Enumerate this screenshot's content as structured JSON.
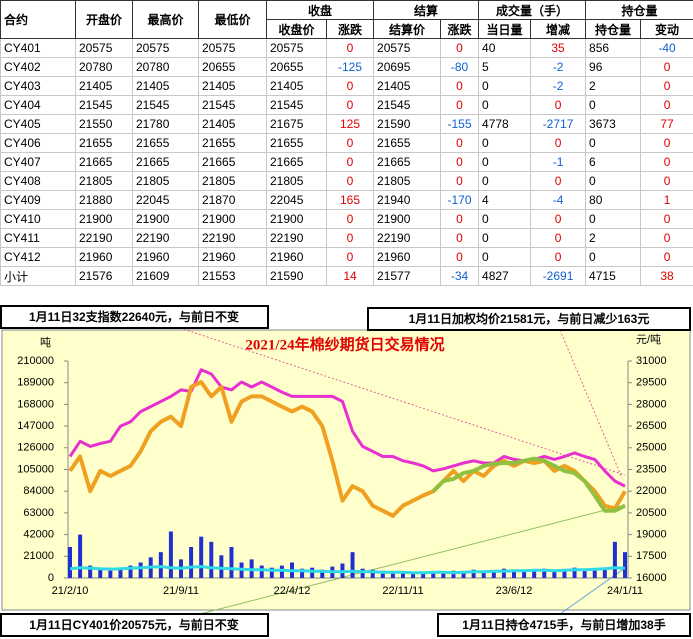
{
  "table": {
    "header_top": [
      "收盘",
      "结算",
      "成交量（手）",
      "持仓量"
    ],
    "header": [
      "合约",
      "开盘价",
      "最高价",
      "最低价",
      "收盘价",
      "涨跌",
      "结算价",
      "涨跌",
      "当日量",
      "增减",
      "持仓量",
      "变动"
    ],
    "rows": [
      [
        "CY401",
        20575,
        20575,
        20575,
        20575,
        0,
        20575,
        0,
        40,
        35,
        856,
        -40
      ],
      [
        "CY402",
        20780,
        20780,
        20655,
        20655,
        -125,
        20695,
        -80,
        5,
        -2,
        96,
        0
      ],
      [
        "CY403",
        21405,
        21405,
        21405,
        21405,
        0,
        21405,
        0,
        0,
        -2,
        2,
        0
      ],
      [
        "CY404",
        21545,
        21545,
        21545,
        21545,
        0,
        21545,
        0,
        0,
        0,
        0,
        0
      ],
      [
        "CY405",
        21550,
        21780,
        21405,
        21675,
        125,
        21590,
        -155,
        4778,
        -2717,
        3673,
        77
      ],
      [
        "CY406",
        21655,
        21655,
        21655,
        21655,
        0,
        21655,
        0,
        0,
        0,
        0,
        0
      ],
      [
        "CY407",
        21665,
        21665,
        21665,
        21665,
        0,
        21665,
        0,
        0,
        -1,
        6,
        0
      ],
      [
        "CY408",
        21805,
        21805,
        21805,
        21805,
        0,
        21805,
        0,
        0,
        0,
        0,
        0
      ],
      [
        "CY409",
        21880,
        22045,
        21870,
        22045,
        165,
        21940,
        -170,
        4,
        -4,
        80,
        1
      ],
      [
        "CY410",
        21900,
        21900,
        21900,
        21900,
        0,
        21900,
        0,
        0,
        0,
        0,
        0
      ],
      [
        "CY411",
        22190,
        22190,
        22190,
        22190,
        0,
        22190,
        0,
        0,
        0,
        2,
        0
      ],
      [
        "CY412",
        21960,
        21960,
        21960,
        21960,
        0,
        21960,
        0,
        0,
        0,
        0,
        0
      ],
      [
        "小计",
        21576,
        21609,
        21553,
        21590,
        14,
        21577,
        -34,
        4827,
        -2691,
        4715,
        38
      ]
    ]
  },
  "chart_data": {
    "type": "combo",
    "title": "2021/24年棉纱期货日交易情况",
    "ylabel": "吨",
    "y2label": "元/吨",
    "annotations": [
      "1月11日32支指数22640元，与前日不变",
      "1月11日加权均价21581元，与前日减少163元",
      "1月11日CY401价20575元，与前日不变",
      "1月11日持仓4715手，与前日增加38手"
    ],
    "categories": [
      "21/2/10",
      null,
      null,
      null,
      null,
      null,
      null,
      null,
      null,
      null,
      null,
      "21/9/11",
      null,
      null,
      null,
      null,
      null,
      null,
      null,
      null,
      null,
      null,
      "22/4/12",
      null,
      null,
      null,
      null,
      null,
      null,
      null,
      null,
      null,
      null,
      "22/11/11",
      null,
      null,
      null,
      null,
      null,
      null,
      null,
      null,
      null,
      null,
      "23/6/12",
      null,
      null,
      null,
      null,
      null,
      null,
      null,
      null,
      null,
      null,
      "24/1/11"
    ],
    "ylim": [
      0,
      210000
    ],
    "yticks": [
      0,
      21000,
      42000,
      63000,
      84000,
      105000,
      126000,
      147000,
      168000,
      189000,
      210000
    ],
    "y2lim": [
      16000,
      31000
    ],
    "y2ticks": [
      16000,
      17500,
      19000,
      20500,
      22000,
      23500,
      25000,
      26500,
      28000,
      29500,
      31000
    ],
    "series": [
      {
        "type": "bar",
        "color": "#1f2fd0",
        "values": [
          30000,
          42000,
          12000,
          8000,
          10000,
          9000,
          12000,
          15000,
          20000,
          25000,
          45000,
          18000,
          30000,
          40000,
          35000,
          22000,
          30000,
          15000,
          18000,
          12000,
          10000,
          12000,
          15000,
          9000,
          10000,
          8000,
          11000,
          14000,
          25000,
          9000,
          8000,
          7000,
          6000,
          6000,
          5000,
          6000,
          5000,
          6000,
          7000,
          6000,
          8000,
          7000,
          6000,
          9000,
          8000,
          7000,
          8000,
          9000,
          7000,
          8000,
          10000,
          9000,
          8000,
          10000,
          35000,
          25000
        ]
      },
      {
        "type": "line",
        "color": "#30d8e8",
        "width": 3,
        "values": [
          9000,
          10000,
          9500,
          9000,
          8500,
          9000,
          9500,
          10000,
          10500,
          11000,
          10000,
          9500,
          10500,
          11000,
          10000,
          9500,
          9000,
          8500,
          8000,
          8000,
          7500,
          7500,
          7000,
          7000,
          6500,
          6500,
          6000,
          6000,
          6500,
          6000,
          6000,
          5500,
          5500,
          5500,
          5000,
          5000,
          5500,
          5500,
          5000,
          5500,
          6000,
          6000,
          6500,
          6500,
          7000,
          7000,
          7500,
          7500,
          7000,
          7500,
          8000,
          8000,
          8500,
          9000,
          10000,
          9500
        ]
      },
      {
        "type": "line",
        "color": "#e830d0",
        "width": 3,
        "axis": "y2",
        "values": [
          24400,
          25450,
          25100,
          25300,
          25450,
          26500,
          26800,
          27500,
          27850,
          28200,
          28550,
          29000,
          28900,
          30400,
          30100,
          29200,
          29000,
          29550,
          29200,
          29550,
          29200,
          28850,
          28550,
          28550,
          28550,
          28550,
          28550,
          28200,
          26150,
          25100,
          24750,
          24400,
          24400,
          24100,
          23950,
          23750,
          23400,
          23550,
          23750,
          23950,
          24100,
          23950,
          23950,
          24400,
          24200,
          24100,
          24200,
          24400,
          24200,
          24400,
          24650,
          24400,
          24200,
          23400,
          22700,
          22350
        ]
      },
      {
        "type": "line",
        "color": "#f0a020",
        "width": 4,
        "axis": "y2",
        "values": [
          23400,
          24400,
          22000,
          23400,
          23050,
          23400,
          23750,
          24750,
          26150,
          26800,
          27150,
          26500,
          29200,
          29550,
          28550,
          29200,
          26800,
          28200,
          28550,
          28550,
          28200,
          27850,
          27500,
          27850,
          27500,
          26500,
          24100,
          21350,
          22350,
          22000,
          21000,
          20650,
          20300,
          21000,
          21350,
          21700,
          22000,
          22700,
          23400,
          22700,
          23400,
          23050,
          23750,
          24100,
          23750,
          24100,
          23950,
          24100,
          23400,
          23750,
          23400,
          22700,
          22000,
          21000,
          20800,
          22000
        ]
      },
      {
        "type": "line",
        "color": "#90c040",
        "width": 4,
        "axis": "y2",
        "values": [
          null,
          null,
          null,
          null,
          null,
          null,
          null,
          null,
          null,
          null,
          null,
          null,
          null,
          null,
          null,
          null,
          null,
          null,
          null,
          null,
          null,
          null,
          null,
          null,
          null,
          null,
          null,
          null,
          null,
          null,
          null,
          null,
          null,
          null,
          null,
          null,
          22000,
          22700,
          22850,
          23250,
          23400,
          23750,
          23900,
          23950,
          23950,
          24100,
          24250,
          24100,
          23750,
          23400,
          23250,
          22700,
          21700,
          20650,
          20650,
          21000
        ]
      }
    ]
  }
}
